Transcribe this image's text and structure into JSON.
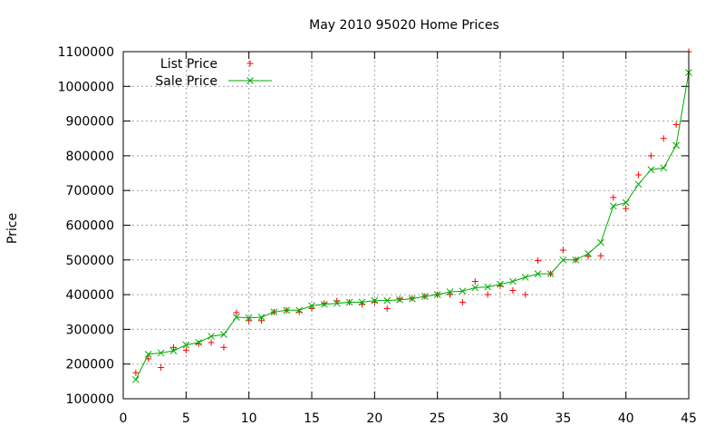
{
  "chart_data": {
    "type": "line",
    "title": "May 2010 95020 Home Prices",
    "xlabel": "",
    "ylabel": "Price",
    "xlim": [
      0,
      45
    ],
    "ylim": [
      100000,
      1100000
    ],
    "xticks": [
      0,
      5,
      10,
      15,
      20,
      25,
      30,
      35,
      40,
      45
    ],
    "yticks": [
      100000,
      200000,
      300000,
      400000,
      500000,
      600000,
      700000,
      800000,
      900000,
      1000000,
      1100000
    ],
    "grid": true,
    "legend_position": "top-left",
    "series": [
      {
        "name": "List Price",
        "style": "points",
        "marker": "+",
        "color": "#ff0000",
        "x": [
          1,
          2,
          3,
          4,
          5,
          6,
          7,
          8,
          9,
          10,
          11,
          12,
          13,
          14,
          15,
          16,
          17,
          18,
          19,
          20,
          21,
          22,
          23,
          24,
          25,
          26,
          27,
          28,
          29,
          30,
          31,
          32,
          33,
          34,
          35,
          36,
          37,
          38,
          39,
          40,
          41,
          42,
          43,
          44,
          45
        ],
        "values": [
          175000,
          215000,
          190000,
          248000,
          240000,
          258000,
          262000,
          248000,
          348000,
          325000,
          325000,
          350000,
          355000,
          350000,
          360000,
          375000,
          382000,
          378000,
          372000,
          378000,
          360000,
          388000,
          390000,
          395000,
          400000,
          400000,
          378000,
          438000,
          400000,
          425000,
          412000,
          400000,
          498000,
          460000,
          528000,
          500000,
          510000,
          512000,
          680000,
          648000,
          745000,
          800000,
          850000,
          890000,
          1100000
        ]
      },
      {
        "name": "Sale Price",
        "style": "linespoints",
        "marker": "x",
        "color": "#00aa00",
        "x": [
          1,
          2,
          3,
          4,
          5,
          6,
          7,
          8,
          9,
          10,
          11,
          12,
          13,
          14,
          15,
          16,
          17,
          18,
          19,
          20,
          21,
          22,
          23,
          24,
          25,
          26,
          27,
          28,
          29,
          30,
          31,
          32,
          33,
          34,
          35,
          36,
          37,
          38,
          39,
          40,
          41,
          42,
          43,
          44,
          45
        ],
        "values": [
          155000,
          228000,
          232000,
          238000,
          255000,
          262000,
          280000,
          285000,
          335000,
          333000,
          335000,
          350000,
          355000,
          355000,
          368000,
          372000,
          375000,
          378000,
          378000,
          383000,
          383000,
          385000,
          388000,
          395000,
          400000,
          408000,
          410000,
          420000,
          422000,
          430000,
          438000,
          450000,
          460000,
          460000,
          500000,
          500000,
          518000,
          550000,
          655000,
          665000,
          718000,
          760000,
          765000,
          830000,
          1040000
        ]
      }
    ]
  }
}
